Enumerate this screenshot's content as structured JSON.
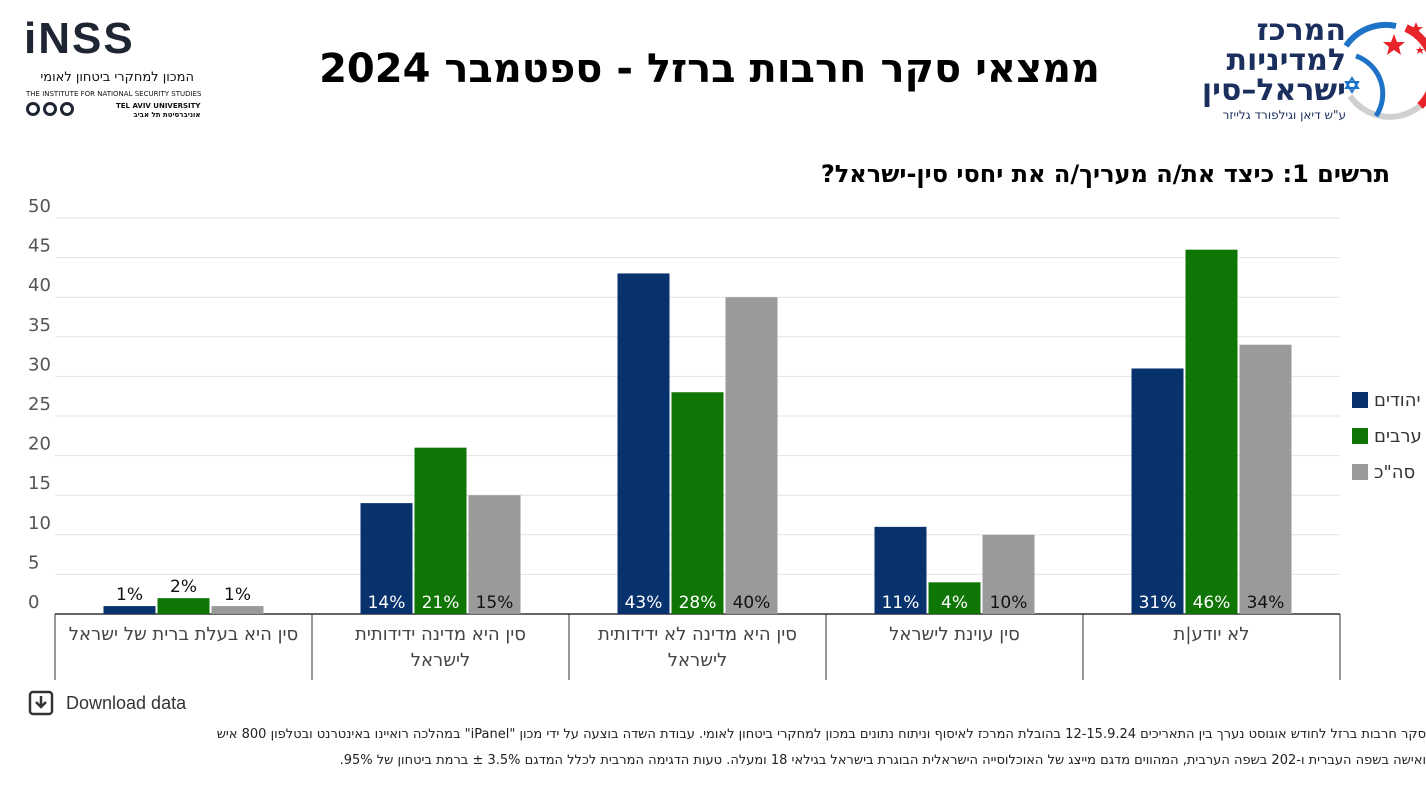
{
  "header": {
    "inss_logo_word": "iNSS",
    "inss_logo_hebrew": "המכון למחקרי ביטחון לאומי",
    "inss_logo_english": "THE INSTITUTE FOR NATIONAL SECURITY STUDIES",
    "tau_label_en": "TEL AVIV UNIVERSITY",
    "tau_label_he": "אוניברסיטת תל אביב",
    "main_title": "ממצאי סקר חרבות ברזל - ספטמבר 2024",
    "center_logo_lines": [
      "המרכז",
      "למדיניות",
      "ישראל–סין"
    ],
    "center_logo_sub": "ע\"ש דיאן וגילפורד גלייזר"
  },
  "chart_data": {
    "type": "bar",
    "title": "תרשים 1: כיצד את/ה מעריך/ה את יחסי סין-ישראל?",
    "xlabel": "",
    "ylabel": "",
    "ylim": [
      0,
      50
    ],
    "yticks": [
      0,
      5,
      10,
      15,
      20,
      25,
      30,
      35,
      40,
      45,
      50
    ],
    "grid": true,
    "legend_position": "right",
    "categories": [
      [
        "סין היא בעלת ברית של ישראל"
      ],
      [
        "סין היא מדינה ידידותית",
        "לישראל"
      ],
      [
        "סין היא מדינה לא ידידותית",
        "לישראל"
      ],
      [
        "סין עוינת לישראל"
      ],
      [
        "לא יודע|ת"
      ]
    ],
    "series": [
      {
        "name": "יהודים",
        "color": "#08326e",
        "values": [
          1,
          14,
          43,
          11,
          31
        ],
        "labels": [
          "1%",
          "14%",
          "43%",
          "11%",
          "31%"
        ]
      },
      {
        "name": "ערבים",
        "color": "#0f7505",
        "values": [
          2,
          21,
          28,
          4,
          46
        ],
        "labels": [
          "2%",
          "21%",
          "28%",
          "4%",
          "46%"
        ]
      },
      {
        "name": "סה\"כ",
        "color": "#9a9a9a",
        "values": [
          1,
          15,
          40,
          10,
          34
        ],
        "labels": [
          "1%",
          "15%",
          "40%",
          "10%",
          "34%"
        ]
      }
    ]
  },
  "download": {
    "label": "Download data",
    "icon": "download-icon"
  },
  "footnote": {
    "line1": "סקר חרבות ברזל לחודש אוגוסט נערך בין התאריכים 12-15.9.24 בהובלת המרכז לאיסוף וניתוח נתונים במכון למחקרי ביטחון לאומי. עבודת השדה בוצעה על ידי מכון \"iPanel\" במהלכה רואיינו באינטרנט ובטלפון 800 איש",
    "line2": "ואישה בשפה העברית ו-202 בשפה הערבית, המהווים מדגם מייצג של האוכלוסייה הישראלית הבוגרת בישראל בגילאי 18 ומעלה. טעות הדגימה המרבית לכלל המדגם 3.5% ± ברמת ביטחון של 95%."
  }
}
